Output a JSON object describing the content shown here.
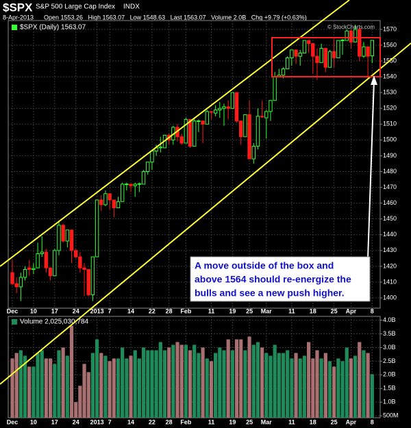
{
  "header": {
    "symbol": "$SPX",
    "name": "S&P 500 Large Cap Index",
    "exchange": "INDX",
    "date": "8-Apr-2013",
    "quote": "Open 1553.26   High 1563.07   Low 1548.63   Last 1563.07   Volume 2.0B   Chg +9.79 (+0.63%)",
    "credit": "© StockCharts.com"
  },
  "chart_data": [
    {
      "type": "candlestick",
      "legend": "$SPX (Daily) 1563.07",
      "categories": [
        "Dec",
        null,
        null,
        null,
        null,
        "10",
        null,
        null,
        null,
        null,
        "17",
        null,
        null,
        null,
        null,
        "24",
        null,
        null,
        null,
        null,
        "2013",
        null,
        null,
        "7",
        null,
        null,
        null,
        null,
        "14",
        null,
        null,
        null,
        null,
        "22",
        null,
        null,
        null,
        "28",
        null,
        null,
        null,
        "Feb",
        null,
        null,
        null,
        null,
        null,
        "11",
        null,
        null,
        null,
        null,
        "19",
        null,
        null,
        null,
        "25",
        null,
        null,
        null,
        "Mar",
        null,
        null,
        null,
        null,
        null,
        "11",
        null,
        null,
        null,
        null,
        "18",
        null,
        null,
        null,
        null,
        "25",
        null,
        null,
        null,
        "Apr",
        null,
        null,
        null,
        null,
        "8"
      ],
      "open": [
        1416,
        1409,
        1407,
        1413,
        1419,
        1418,
        1419,
        1428,
        1429,
        1419,
        1414,
        1430,
        1446,
        1436,
        1443,
        1430,
        1426,
        1419,
        1418,
        1402,
        1426,
        1462,
        1459,
        1466,
        1462,
        1457,
        1461,
        1472,
        1472,
        1471,
        1472,
        1472,
        1480,
        1486,
        1493,
        1495,
        1495,
        1503,
        1500,
        1508,
        1502,
        1498,
        1513,
        1496,
        1512,
        1512,
        1510,
        1518,
        1517,
        1519,
        1520,
        1521,
        1520,
        1530,
        1512,
        1502,
        1516,
        1488,
        1496,
        1515,
        1514,
        1518,
        1525,
        1540,
        1541,
        1545,
        1552,
        1557,
        1553,
        1555,
        1563,
        1561,
        1553,
        1549,
        1558,
        1546,
        1556,
        1552,
        1563,
        1563,
        1569,
        1562,
        1570,
        1553,
        1559,
        1553.26
      ],
      "high": [
        1424,
        1413,
        1416,
        1420,
        1424,
        1422,
        1435,
        1439,
        1431,
        1419,
        1431,
        1448,
        1447,
        1443,
        1443,
        1431,
        1429,
        1422,
        1418,
        1426,
        1462,
        1465,
        1468,
        1466,
        1462,
        1464,
        1473,
        1473,
        1472,
        1473,
        1473,
        1481,
        1486,
        1493,
        1497,
        1502,
        1503,
        1504,
        1509,
        1510,
        1504,
        1514,
        1513,
        1514,
        1513,
        1512,
        1519,
        1518,
        1522,
        1524,
        1523,
        1525,
        1530,
        1530,
        1512,
        1516,
        1525,
        1498,
        1520,
        1525,
        1519,
        1525,
        1543,
        1545,
        1546,
        1553,
        1557,
        1557,
        1557,
        1563,
        1563,
        1561,
        1558,
        1561,
        1558,
        1557,
        1564,
        1563,
        1564,
        1570,
        1570,
        1573,
        1571,
        1562,
        1559,
        1563.07
      ],
      "low": [
        1408,
        1403,
        1398,
        1411,
        1414,
        1415,
        1419,
        1426,
        1416,
        1411,
        1414,
        1427,
        1435,
        1432,
        1422,
        1425,
        1416,
        1401,
        1401,
        1398,
        1426,
        1455,
        1458,
        1456,
        1451,
        1457,
        1461,
        1468,
        1467,
        1464,
        1467,
        1472,
        1478,
        1481,
        1490,
        1492,
        1495,
        1497,
        1497,
        1499,
        1497,
        1498,
        1495,
        1496,
        1505,
        1498,
        1510,
        1513,
        1515,
        1514,
        1509,
        1513,
        1520,
        1511,
        1497,
        1502,
        1488,
        1485,
        1494,
        1514,
        1501,
        1512,
        1525,
        1540,
        1539,
        1545,
        1547,
        1548,
        1547,
        1555,
        1555,
        1542,
        1538,
        1549,
        1543,
        1546,
        1546,
        1552,
        1554,
        1563,
        1558,
        1562,
        1550,
        1552,
        1539,
        1548.63
      ],
      "close": [
        1409,
        1407,
        1413,
        1418,
        1418,
        1418.6,
        1428,
        1429,
        1419,
        1414,
        1430,
        1446,
        1436,
        1443,
        1430,
        1426,
        1419,
        1418,
        1402,
        1426,
        1462,
        1459,
        1466,
        1462,
        1457,
        1461,
        1472,
        1472.1,
        1471,
        1472,
        1472.3,
        1480,
        1486,
        1493,
        1495,
        1495.5,
        1503,
        1500,
        1508,
        1502,
        1498,
        1513,
        1496,
        1512,
        1512.1,
        1510,
        1518,
        1517.5,
        1519,
        1520,
        1521,
        1520,
        1530,
        1512,
        1502,
        1516,
        1488,
        1496,
        1515,
        1514.5,
        1518,
        1525,
        1540,
        1541,
        1545,
        1552,
        1557,
        1553,
        1555,
        1563,
        1561,
        1553,
        1549,
        1558,
        1546,
        1556,
        1552,
        1563,
        1563.3,
        1569,
        1562,
        1570,
        1553,
        1559,
        1553,
        1563.07
      ],
      "up_color": "#33ff33",
      "down_color": "#ff1a1a",
      "ylim": [
        1393.5,
        1575.6
      ],
      "yticks": [
        1400,
        1410,
        1420,
        1430,
        1440,
        1450,
        1460,
        1470,
        1480,
        1490,
        1500,
        1510,
        1520,
        1530,
        1540,
        1550,
        1560,
        1570
      ],
      "grid": true,
      "annotation": [
        "A move outside of the box and",
        "above 1564 should re-energize the",
        "bulls and see a new push higher."
      ]
    },
    {
      "type": "bar",
      "legend": "Volume 2,025,030,784",
      "categories": [
        "Dec",
        null,
        null,
        null,
        null,
        "10",
        null,
        null,
        null,
        null,
        "17",
        null,
        null,
        null,
        null,
        "24",
        null,
        null,
        null,
        null,
        "2013",
        null,
        null,
        "7",
        null,
        null,
        null,
        null,
        "14",
        null,
        null,
        null,
        null,
        "22",
        null,
        null,
        null,
        "28",
        null,
        null,
        null,
        "Feb",
        null,
        null,
        null,
        null,
        null,
        "11",
        null,
        null,
        null,
        null,
        "19",
        null,
        null,
        null,
        "25",
        null,
        null,
        null,
        "Mar",
        null,
        null,
        null,
        null,
        null,
        "11",
        null,
        null,
        null,
        null,
        "18",
        null,
        null,
        null,
        null,
        "25",
        null,
        null,
        null,
        "Apr",
        null,
        null,
        null,
        null,
        "8"
      ],
      "values": [
        2.6,
        2.8,
        2.9,
        2.7,
        2.3,
        2.3,
        2.8,
        2.9,
        2.6,
        2.6,
        2.4,
        2.9,
        3.0,
        2.7,
        3.8,
        1.0,
        1.6,
        2.4,
        2.1,
        2.8,
        3.3,
        2.8,
        2.7,
        2.5,
        2.6,
        2.6,
        3.0,
        2.6,
        2.7,
        2.9,
        2.6,
        3.0,
        2.9,
        2.9,
        2.9,
        3.2,
        2.9,
        3.0,
        3.1,
        3.2,
        3.1,
        3.1,
        2.9,
        3.1,
        2.8,
        3.0,
        2.6,
        2.5,
        2.8,
        3.0,
        2.9,
        3.3,
        2.9,
        3.3,
        3.3,
        2.9,
        3.4,
        3.1,
        3.2,
        3.0,
        2.8,
        2.7,
        3.1,
        2.8,
        2.8,
        2.9,
        2.6,
        2.8,
        2.6,
        2.7,
        3.2,
        2.6,
        2.9,
        2.6,
        2.8,
        2.5,
        2.3,
        2.6,
        2.5,
        3.0,
        2.6,
        2.7,
        3.2,
        2.9,
        2.8,
        2.025
      ],
      "up_color": "#1f8a5a",
      "down_color": "#a87070",
      "ylim": [
        0.43,
        4.14
      ],
      "yticks": [
        {
          "value": 0.5,
          "label": "500M"
        },
        {
          "value": 1,
          "label": "1.0B"
        },
        {
          "value": 1.5,
          "label": "1.5B"
        },
        {
          "value": 2,
          "label": "2.0B"
        },
        {
          "value": 2.5,
          "label": "2.5B"
        },
        {
          "value": 3,
          "label": "3.0B"
        },
        {
          "value": 3.5,
          "label": "3.5B"
        },
        {
          "value": 4,
          "label": "4.0B"
        }
      ],
      "grid": true
    }
  ]
}
